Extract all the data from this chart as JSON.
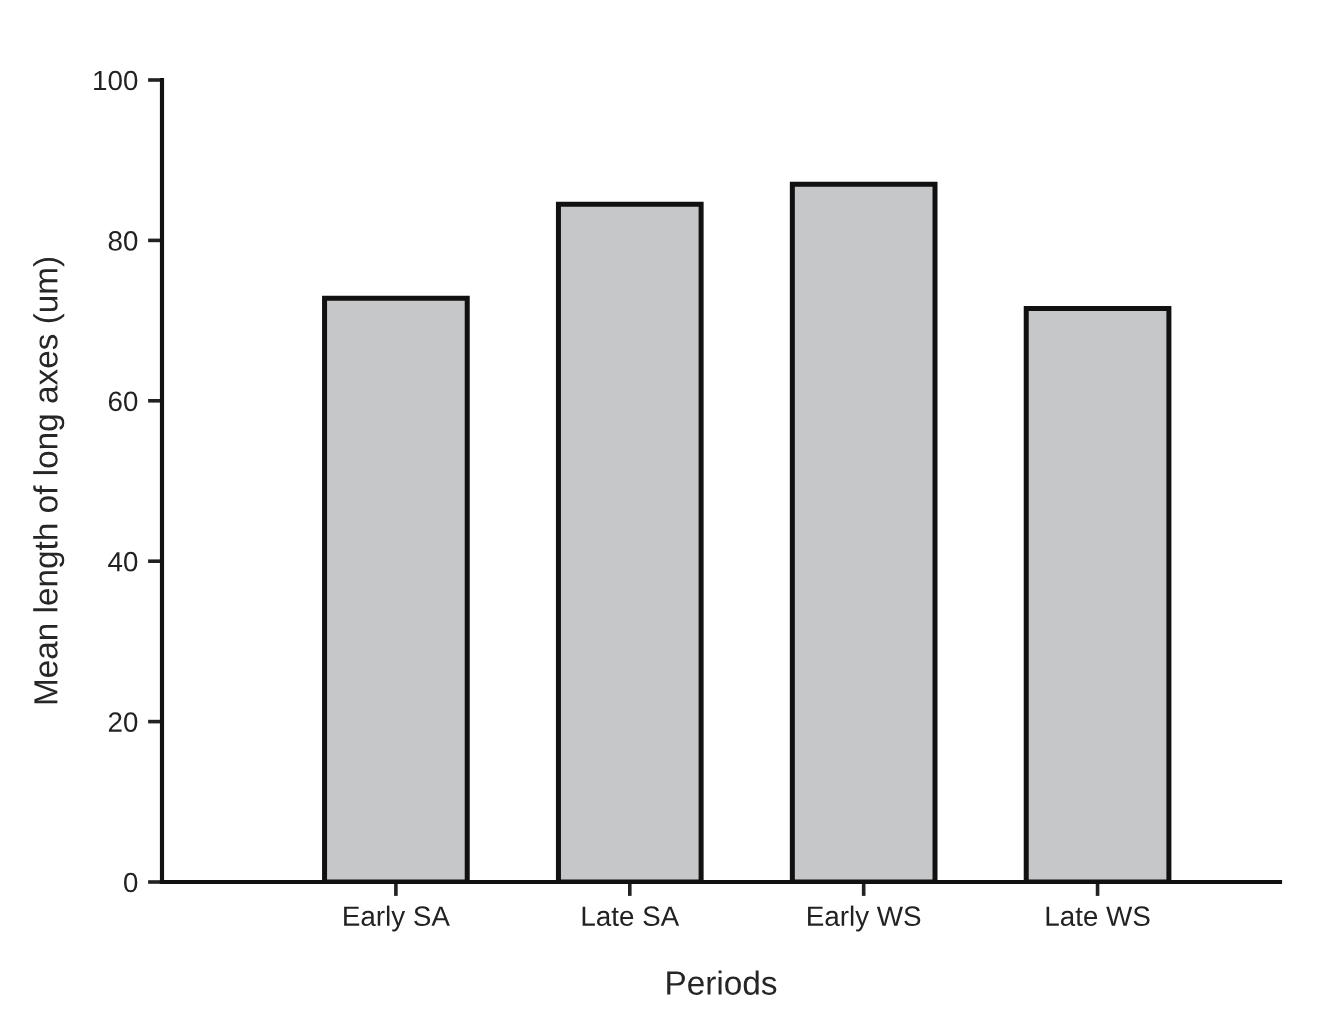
{
  "chart_data": {
    "type": "bar",
    "xlabel": "Periods",
    "ylabel": "Mean length of long axes (um)",
    "categories": [
      "Early SA",
      "Late SA",
      "Early WS",
      "Late WS"
    ],
    "values": [
      72.8,
      84.5,
      87.0,
      71.5
    ],
    "color": "#c6c7c9",
    "ylim": [
      0,
      100
    ],
    "yticks": [
      0,
      20,
      40,
      60,
      80,
      100
    ],
    "grid": false,
    "legend": false
  }
}
